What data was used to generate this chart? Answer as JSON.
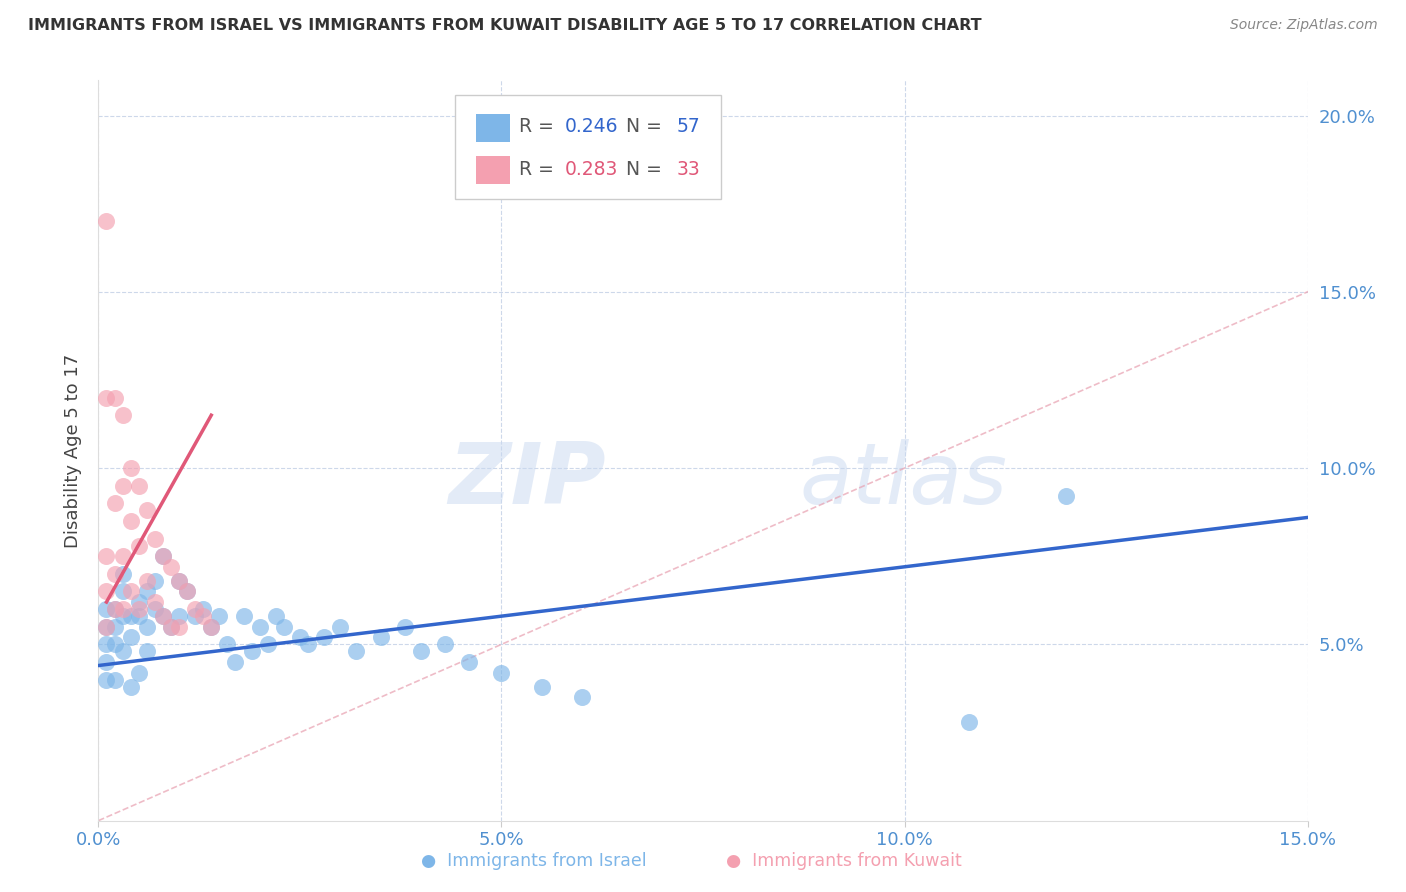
{
  "title": "IMMIGRANTS FROM ISRAEL VS IMMIGRANTS FROM KUWAIT DISABILITY AGE 5 TO 17 CORRELATION CHART",
  "source": "Source: ZipAtlas.com",
  "ylabel_label": "Disability Age 5 to 17",
  "xlim": [
    0.0,
    0.15
  ],
  "ylim": [
    0.0,
    0.21
  ],
  "xticks": [
    0.0,
    0.05,
    0.1,
    0.15
  ],
  "yticks": [
    0.05,
    0.1,
    0.15,
    0.2
  ],
  "xtick_labels": [
    "0.0%",
    "5.0%",
    "10.0%",
    "15.0%"
  ],
  "ytick_labels": [
    "5.0%",
    "10.0%",
    "15.0%",
    "20.0%"
  ],
  "israel_R": 0.246,
  "israel_N": 57,
  "kuwait_R": 0.283,
  "kuwait_N": 33,
  "israel_color": "#7EB6E8",
  "kuwait_color": "#F4A0B0",
  "israel_line_color": "#3366CC",
  "kuwait_line_color": "#E05878",
  "diagonal_color": "#E8A0B0",
  "watermark_zip": "ZIP",
  "watermark_atlas": "atlas",
  "israel_scatter_x": [
    0.001,
    0.001,
    0.001,
    0.001,
    0.001,
    0.002,
    0.002,
    0.002,
    0.002,
    0.003,
    0.003,
    0.003,
    0.003,
    0.004,
    0.004,
    0.004,
    0.005,
    0.005,
    0.005,
    0.006,
    0.006,
    0.006,
    0.007,
    0.007,
    0.008,
    0.008,
    0.009,
    0.01,
    0.01,
    0.011,
    0.012,
    0.013,
    0.014,
    0.015,
    0.016,
    0.017,
    0.018,
    0.019,
    0.02,
    0.021,
    0.022,
    0.023,
    0.025,
    0.026,
    0.028,
    0.03,
    0.032,
    0.035,
    0.038,
    0.04,
    0.043,
    0.046,
    0.05,
    0.055,
    0.06,
    0.108,
    0.12
  ],
  "israel_scatter_y": [
    0.055,
    0.05,
    0.06,
    0.045,
    0.04,
    0.055,
    0.06,
    0.05,
    0.04,
    0.065,
    0.058,
    0.048,
    0.07,
    0.058,
    0.052,
    0.038,
    0.062,
    0.058,
    0.042,
    0.065,
    0.055,
    0.048,
    0.068,
    0.06,
    0.075,
    0.058,
    0.055,
    0.068,
    0.058,
    0.065,
    0.058,
    0.06,
    0.055,
    0.058,
    0.05,
    0.045,
    0.058,
    0.048,
    0.055,
    0.05,
    0.058,
    0.055,
    0.052,
    0.05,
    0.052,
    0.055,
    0.048,
    0.052,
    0.055,
    0.048,
    0.05,
    0.045,
    0.042,
    0.038,
    0.035,
    0.028,
    0.092
  ],
  "kuwait_scatter_x": [
    0.001,
    0.001,
    0.001,
    0.001,
    0.001,
    0.002,
    0.002,
    0.002,
    0.002,
    0.003,
    0.003,
    0.003,
    0.003,
    0.004,
    0.004,
    0.004,
    0.005,
    0.005,
    0.005,
    0.006,
    0.006,
    0.007,
    0.007,
    0.008,
    0.008,
    0.009,
    0.009,
    0.01,
    0.01,
    0.011,
    0.012,
    0.013,
    0.014
  ],
  "kuwait_scatter_y": [
    0.17,
    0.12,
    0.075,
    0.065,
    0.055,
    0.12,
    0.09,
    0.07,
    0.06,
    0.115,
    0.095,
    0.075,
    0.06,
    0.1,
    0.085,
    0.065,
    0.095,
    0.078,
    0.06,
    0.088,
    0.068,
    0.08,
    0.062,
    0.075,
    0.058,
    0.072,
    0.055,
    0.068,
    0.055,
    0.065,
    0.06,
    0.058,
    0.055
  ],
  "israel_line_x0": 0.0,
  "israel_line_x1": 0.15,
  "israel_line_y0": 0.044,
  "israel_line_y1": 0.086,
  "kuwait_line_x0": 0.001,
  "kuwait_line_x1": 0.014,
  "kuwait_line_y0": 0.062,
  "kuwait_line_y1": 0.115
}
